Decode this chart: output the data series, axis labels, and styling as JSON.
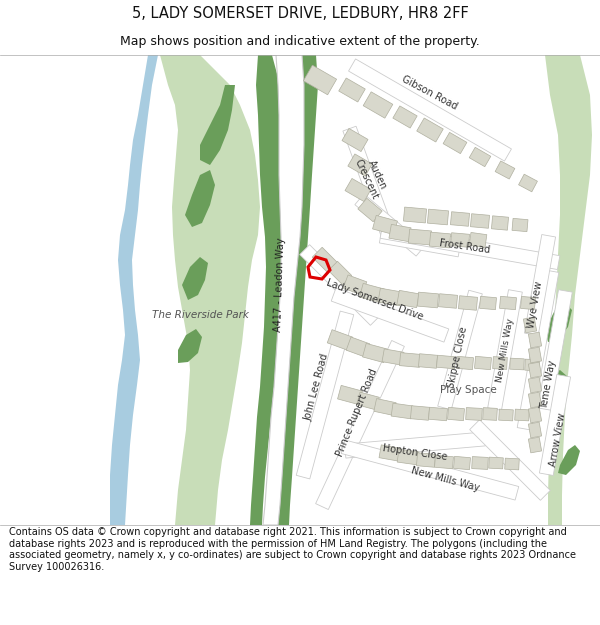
{
  "title": "5, LADY SOMERSET DRIVE, LEDBURY, HR8 2FF",
  "subtitle": "Map shows position and indicative extent of the property.",
  "footer": "Contains OS data © Crown copyright and database right 2021. This information is subject to Crown copyright and database rights 2023 and is reproduced with the permission of HM Land Registry. The polygons (including the associated geometry, namely x, y co-ordinates) are subject to Crown copyright and database rights 2023 Ordnance Survey 100026316.",
  "bg_color": "#ffffff",
  "map_bg": "#f7f5f0",
  "road_color": "#ffffff",
  "road_outline_color": "#cccccc",
  "light_green": "#c8ddb8",
  "dark_green": "#6a9e5a",
  "medium_green": "#8ab878",
  "water_color": "#a8cce0",
  "building_color": "#d8d8cc",
  "building_edge": "#b0b0a0",
  "property_red": "#dd0000",
  "text_dark": "#333333",
  "title_size": 10.5,
  "subtitle_size": 9,
  "footer_size": 7,
  "label_size": 7
}
